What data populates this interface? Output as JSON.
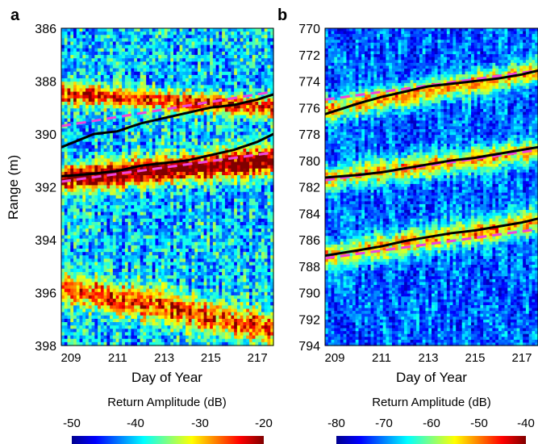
{
  "panels": [
    {
      "letter": "a",
      "type": "heatmap",
      "xlabel": "Day of Year",
      "ylabel": "Range (m)",
      "x_range": [
        208.6,
        217.7
      ],
      "y_range": [
        386,
        398
      ],
      "x_ticks": [
        "209",
        "211",
        "213",
        "215",
        "217"
      ],
      "y_ticks": [
        "386",
        "388",
        "390",
        "392",
        "394",
        "396",
        "398"
      ],
      "colorbar": {
        "label": "Return Amplitude (dB)",
        "ticks": [
          "-50",
          "-40",
          "-30",
          "-20"
        ],
        "range": [
          -50,
          -20
        ]
      },
      "bands": [
        {
          "y_start": 388.5,
          "y_end": 389.0,
          "level": 0.58,
          "half_width": 0.38
        },
        {
          "y_start": 391.7,
          "y_end": 391.0,
          "level": 0.8,
          "half_width": 0.48
        },
        {
          "y_start": 395.8,
          "y_end": 397.4,
          "level": 0.55,
          "half_width": 0.6
        }
      ],
      "solid_lines": [
        {
          "x": [
            208.6,
            210,
            211,
            212,
            213,
            214,
            215,
            216,
            217,
            217.7
          ],
          "y": [
            390.5,
            390.0,
            389.9,
            389.6,
            389.4,
            389.2,
            389.0,
            388.9,
            388.7,
            388.5
          ]
        },
        {
          "x": [
            208.6,
            210,
            211,
            212,
            213,
            214,
            215,
            216,
            217,
            217.7
          ],
          "y": [
            391.6,
            391.5,
            391.4,
            391.2,
            391.1,
            391.0,
            390.8,
            390.6,
            390.3,
            390.0
          ]
        }
      ],
      "dashed_lines": [
        {
          "x": [
            208.6,
            217.7
          ],
          "y": [
            389.7,
            388.4
          ]
        },
        {
          "x": [
            208.6,
            217.7
          ],
          "y": [
            391.8,
            390.7
          ]
        }
      ]
    },
    {
      "letter": "b",
      "type": "heatmap",
      "xlabel": "Day of Year",
      "ylabel": "",
      "x_range": [
        208.6,
        217.7
      ],
      "y_range": [
        770,
        794
      ],
      "x_ticks": [
        "209",
        "211",
        "213",
        "215",
        "217"
      ],
      "y_ticks": [
        "770",
        "772",
        "774",
        "776",
        "778",
        "780",
        "782",
        "784",
        "786",
        "788",
        "790",
        "792",
        "794"
      ],
      "colorbar": {
        "label": "Return Amplitude (dB)",
        "ticks": [
          "-80",
          "-70",
          "-60",
          "-50",
          "-40"
        ],
        "range": [
          -80,
          -40
        ]
      },
      "bands": [
        {
          "y_start": 776.2,
          "y_end": 773.3,
          "level": 0.52,
          "half_width": 0.9
        },
        {
          "y_start": 781.4,
          "y_end": 779.3,
          "level": 0.5,
          "half_width": 0.9
        },
        {
          "y_start": 787.3,
          "y_end": 784.6,
          "level": 0.5,
          "half_width": 1.0
        }
      ],
      "solid_lines": [
        {
          "x": [
            208.6,
            210,
            211,
            212,
            213,
            214,
            215,
            216,
            217,
            217.7
          ],
          "y": [
            776.5,
            775.7,
            775.2,
            774.8,
            774.4,
            774.2,
            774.0,
            773.8,
            773.5,
            773.2
          ]
        },
        {
          "x": [
            208.6,
            210,
            211,
            212,
            213,
            214,
            215,
            216,
            217,
            217.7
          ],
          "y": [
            781.3,
            781.1,
            780.9,
            780.6,
            780.3,
            780.0,
            779.8,
            779.5,
            779.2,
            779.0
          ]
        },
        {
          "x": [
            208.6,
            210,
            211,
            212,
            213,
            214,
            215,
            216,
            217,
            217.7
          ],
          "y": [
            787.2,
            786.8,
            786.5,
            786.1,
            785.8,
            785.5,
            785.3,
            785.0,
            784.7,
            784.4
          ]
        }
      ],
      "dashed_lines": [
        {
          "x": [
            208.6,
            217.7
          ],
          "y": [
            775.4,
            773.2
          ]
        },
        {
          "x": [
            208.6,
            217.7
          ],
          "y": [
            781.5,
            779.2
          ]
        },
        {
          "x": [
            208.6,
            217.7
          ],
          "y": [
            787.4,
            785.2
          ]
        }
      ]
    }
  ],
  "chart_data": [
    {
      "type": "heatmap",
      "panel": "a",
      "xlabel": "Day of Year",
      "ylabel": "Range (m)",
      "xlim": [
        208.6,
        217.7
      ],
      "ylim": [
        386,
        398
      ],
      "y_inverted": true,
      "colorbar_label": "Return Amplitude (dB)",
      "colorbar_range": [
        -50,
        -20
      ],
      "series": [
        {
          "style": "solid-black",
          "x": [
            208.6,
            210,
            211,
            212,
            213,
            214,
            215,
            216,
            217,
            217.7
          ],
          "y": [
            390.5,
            390.0,
            389.9,
            389.6,
            389.4,
            389.2,
            389.0,
            388.9,
            388.7,
            388.5
          ]
        },
        {
          "style": "solid-black",
          "x": [
            208.6,
            210,
            211,
            212,
            213,
            214,
            215,
            216,
            217,
            217.7
          ],
          "y": [
            391.6,
            391.5,
            391.4,
            391.2,
            391.1,
            391.0,
            390.8,
            390.6,
            390.3,
            390.0
          ]
        },
        {
          "style": "dashed-magenta",
          "x": [
            208.6,
            217.7
          ],
          "y": [
            389.7,
            388.4
          ]
        },
        {
          "style": "dashed-magenta",
          "x": [
            208.6,
            217.7
          ],
          "y": [
            391.8,
            390.7
          ]
        }
      ]
    },
    {
      "type": "heatmap",
      "panel": "b",
      "xlabel": "Day of Year",
      "ylabel": "",
      "xlim": [
        208.6,
        217.7
      ],
      "ylim": [
        770,
        794
      ],
      "y_inverted": true,
      "colorbar_label": "Return Amplitude (dB)",
      "colorbar_range": [
        -80,
        -40
      ],
      "series": [
        {
          "style": "solid-black",
          "x": [
            208.6,
            210,
            211,
            212,
            213,
            214,
            215,
            216,
            217,
            217.7
          ],
          "y": [
            776.5,
            775.7,
            775.2,
            774.8,
            774.4,
            774.2,
            774.0,
            773.8,
            773.5,
            773.2
          ]
        },
        {
          "style": "solid-black",
          "x": [
            208.6,
            210,
            211,
            212,
            213,
            214,
            215,
            216,
            217,
            217.7
          ],
          "y": [
            781.3,
            781.1,
            780.9,
            780.6,
            780.3,
            780.0,
            779.8,
            779.5,
            779.2,
            779.0
          ]
        },
        {
          "style": "solid-black",
          "x": [
            208.6,
            210,
            211,
            212,
            213,
            214,
            215,
            216,
            217,
            217.7
          ],
          "y": [
            787.2,
            786.8,
            786.5,
            786.1,
            785.8,
            785.5,
            785.3,
            785.0,
            784.7,
            784.4
          ]
        },
        {
          "style": "dashed-magenta",
          "x": [
            208.6,
            217.7
          ],
          "y": [
            775.4,
            773.2
          ]
        },
        {
          "style": "dashed-magenta",
          "x": [
            208.6,
            217.7
          ],
          "y": [
            781.5,
            779.2
          ]
        },
        {
          "style": "dashed-magenta",
          "x": [
            208.6,
            217.7
          ],
          "y": [
            787.4,
            785.2
          ]
        }
      ]
    }
  ],
  "colors": {
    "solid_line": "#000000",
    "dashed_line": "#ee44dd",
    "colormap": [
      "#00008f",
      "#0000ff",
      "#0080ff",
      "#00ffff",
      "#80ff80",
      "#ffff00",
      "#ff8000",
      "#ff0000",
      "#800000"
    ]
  }
}
